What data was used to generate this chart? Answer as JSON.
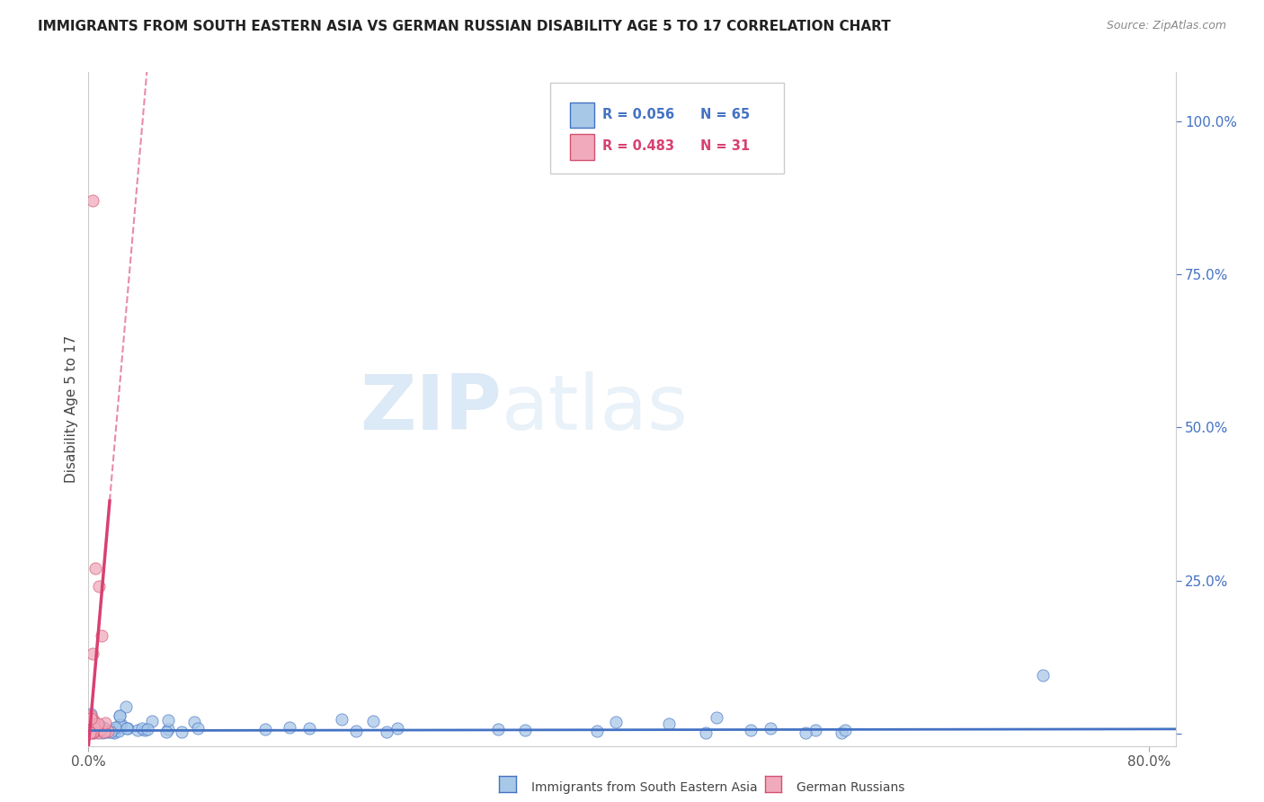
{
  "title": "IMMIGRANTS FROM SOUTH EASTERN ASIA VS GERMAN RUSSIAN DISABILITY AGE 5 TO 17 CORRELATION CHART",
  "source": "Source: ZipAtlas.com",
  "ylabel": "Disability Age 5 to 17",
  "legend_series1_label": "Immigrants from South Eastern Asia",
  "legend_series2_label": "German Russians",
  "legend_r1": "R = 0.056",
  "legend_n1": "N = 65",
  "legend_r2": "R = 0.483",
  "legend_n2": "N = 31",
  "watermark_zip": "ZIP",
  "watermark_atlas": "atlas",
  "color_blue": "#a8c8e8",
  "color_blue_edge": "#4472c4",
  "color_pink": "#f0aabb",
  "color_pink_edge": "#d45070",
  "color_pink_line": "#d84070",
  "color_blue_line": "#4472c4",
  "xlim": [
    0.0,
    0.82
  ],
  "ylim": [
    -0.02,
    1.08
  ],
  "yticks": [
    0.0,
    0.25,
    0.5,
    0.75,
    1.0
  ],
  "ytick_labels": [
    "",
    "25.0%",
    "50.0%",
    "75.0%",
    "100.0%"
  ],
  "xtick_left": "0.0%",
  "xtick_right": "80.0%"
}
